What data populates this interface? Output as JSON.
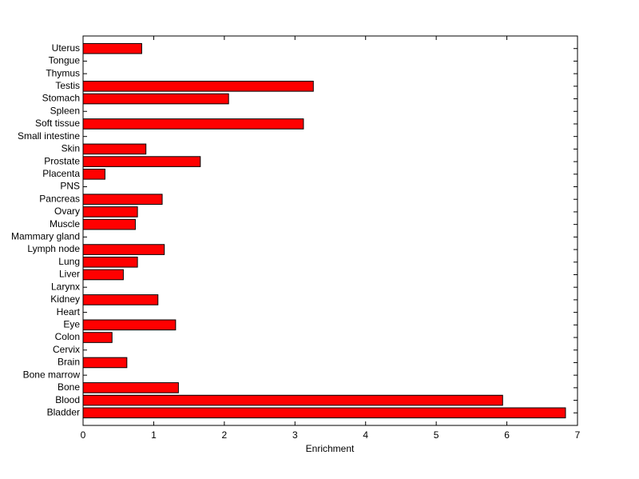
{
  "chart_data": {
    "type": "barh",
    "xlabel": "Enrichment",
    "categories": [
      "Uterus",
      "Tongue",
      "Thymus",
      "Testis",
      "Stomach",
      "Spleen",
      "Soft tissue",
      "Small intestine",
      "Skin",
      "Prostate",
      "Placenta",
      "PNS",
      "Pancreas",
      "Ovary",
      "Muscle",
      "Mammary gland",
      "Lymph node",
      "Lung",
      "Liver",
      "Larynx",
      "Kidney",
      "Heart",
      "Eye",
      "Colon",
      "Cervix",
      "Brain",
      "Bone marrow",
      "Bone",
      "Blood",
      "Bladder"
    ],
    "values": [
      0.83,
      0,
      0,
      3.26,
      2.06,
      0,
      3.12,
      0,
      0.89,
      1.66,
      0.31,
      0,
      1.12,
      0.77,
      0.74,
      0,
      1.15,
      0.77,
      0.57,
      0,
      1.06,
      0,
      1.31,
      0.41,
      0,
      0.62,
      0,
      1.35,
      5.94,
      6.83
    ],
    "color": "#ff0000",
    "xlim": [
      0,
      7
    ],
    "xticks": [
      0,
      1,
      2,
      3,
      4,
      5,
      6,
      7
    ]
  }
}
